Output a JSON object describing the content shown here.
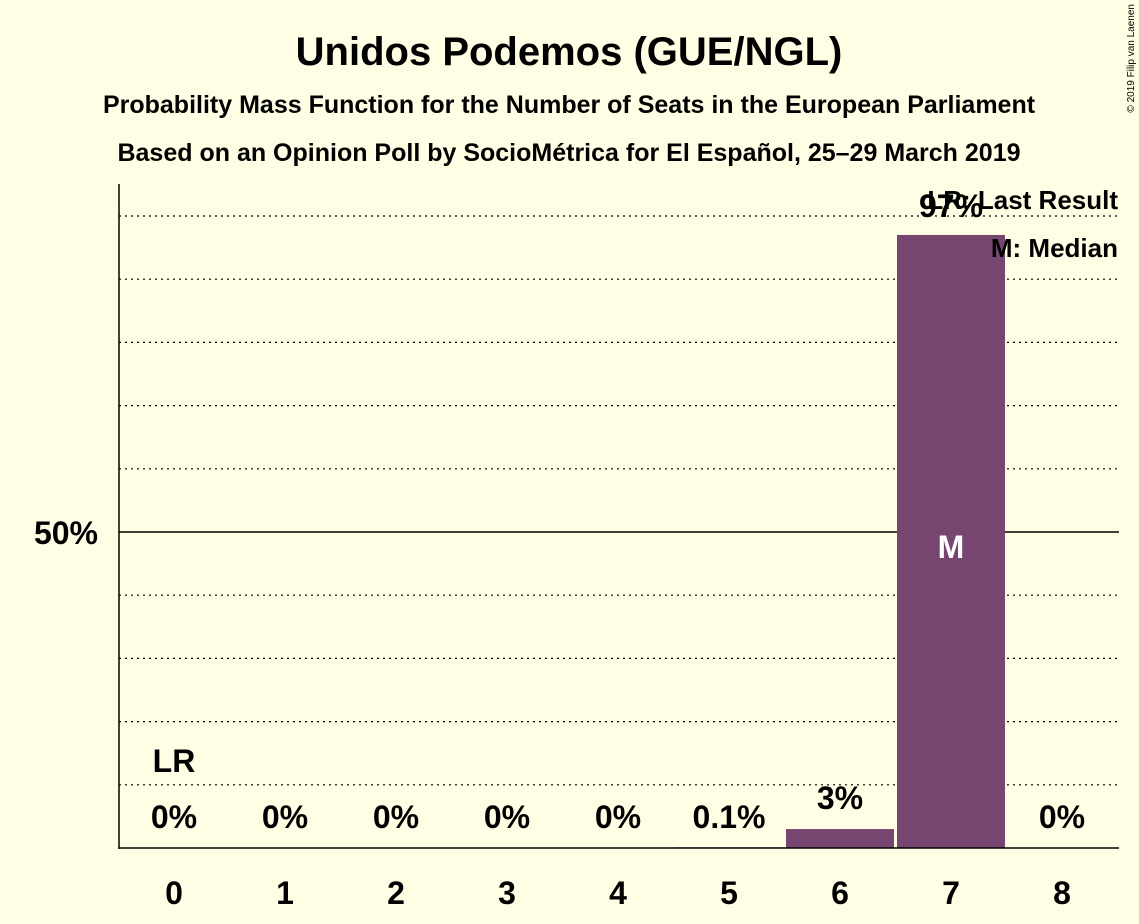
{
  "chart_data": {
    "type": "bar",
    "title": "Unidos Podemos (GUE/NGL)",
    "subtitle": "Probability Mass Function for the Number of Seats in the European Parliament",
    "subtitle2": "Based on an Opinion Poll by SocioMétrica for El Español, 25–29 March 2019",
    "categories": [
      "0",
      "1",
      "2",
      "3",
      "4",
      "5",
      "6",
      "7",
      "8"
    ],
    "values": [
      0,
      0,
      0,
      0,
      0,
      0.1,
      3,
      97,
      0
    ],
    "value_labels": [
      "0%",
      "0%",
      "0%",
      "0%",
      "0%",
      "0.1%",
      "3%",
      "97%",
      "0%"
    ],
    "ylim": [
      0,
      105
    ],
    "y_tick_label": "50%",
    "y_tick_value": 50,
    "grid_step": 10,
    "bar_color": "#764570",
    "last_result_index": 0,
    "last_result_label": "LR",
    "median_index": 7,
    "median_label": "M",
    "legend": {
      "position": "top-right",
      "items": [
        "LR: Last Result",
        "M: Median"
      ]
    },
    "copyright": "© 2019 Filip van Laenen"
  }
}
